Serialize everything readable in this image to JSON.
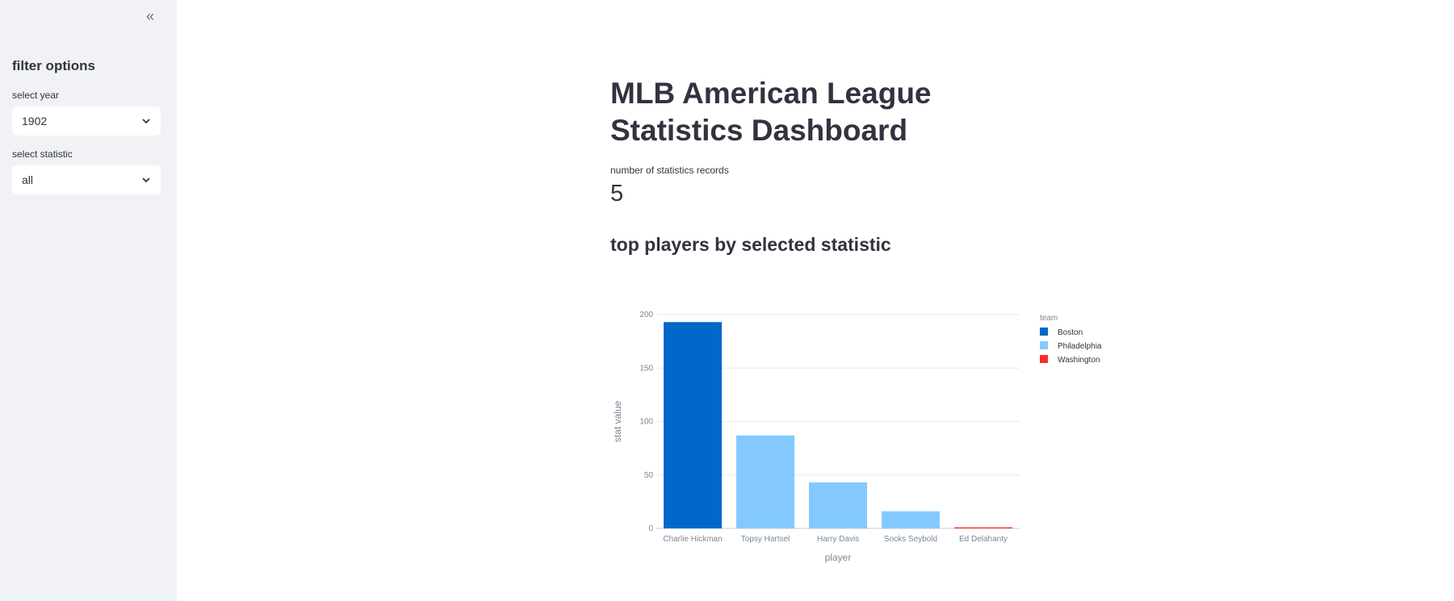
{
  "sidebar": {
    "collapse_icon": "double-chevron-left-icon",
    "title": "filter options",
    "year": {
      "label": "select year",
      "value": "1902"
    },
    "statistic": {
      "label": "select statistic",
      "value": "all"
    }
  },
  "main": {
    "title": "MLB American League Statistics Dashboard",
    "metric": {
      "label": "number of statistics records",
      "value": "5"
    },
    "subheader": "top players by selected statistic"
  },
  "chart_data": {
    "type": "bar",
    "categories": [
      "Charlie Hickman",
      "Topsy Hartsel",
      "Harry Davis",
      "Socks Seybold",
      "Ed Delahanty"
    ],
    "values": [
      193,
      87,
      43,
      16,
      1
    ],
    "colors_by_bar": [
      "#0068c9",
      "#83c9ff",
      "#83c9ff",
      "#83c9ff",
      "#ff2b2b"
    ],
    "xlabel": "player",
    "ylabel": "stat value",
    "ylim": [
      0,
      200
    ],
    "yticks": [
      0,
      50,
      100,
      150,
      200
    ],
    "grid": true,
    "legend": {
      "title": "team",
      "placement": "right",
      "entries": [
        {
          "name": "Boston",
          "color": "#0068c9"
        },
        {
          "name": "Philadelphia",
          "color": "#83c9ff"
        },
        {
          "name": "Washington",
          "color": "#ff2b2b"
        }
      ]
    }
  }
}
